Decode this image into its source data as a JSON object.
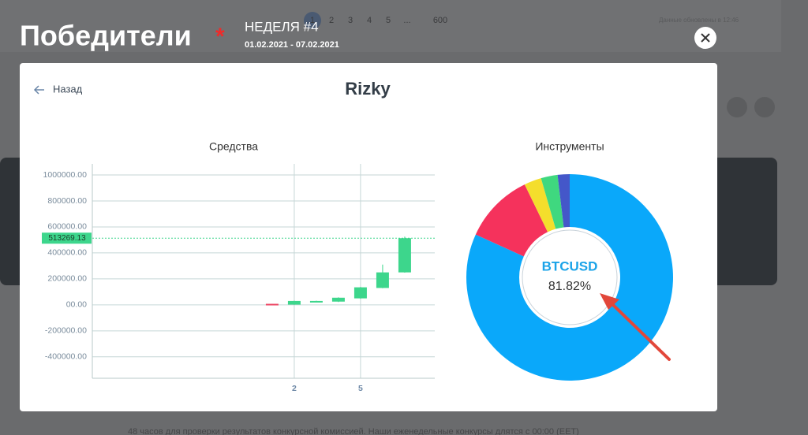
{
  "background": {
    "pagination": [
      "1",
      "2",
      "3",
      "4",
      "5",
      "...",
      "600"
    ],
    "updated": "Данные обновлены в 12:46",
    "footer_note": "48 часов для проверки результатов конкурсной комиссией. Наши еженедельные конкурсы длятся с 00:00 (EET)"
  },
  "header": {
    "title": "Победители",
    "asterisk": "*",
    "week": "НЕДЕЛЯ #4",
    "dates": "01.02.2021 - 07.02.2021"
  },
  "modal": {
    "back": "Назад",
    "title": "Rizky"
  },
  "chart_data": [
    {
      "type": "candlestick",
      "title": "Средства",
      "x": [
        1,
        2,
        3,
        4,
        5,
        6,
        7
      ],
      "open": [
        8000,
        2000,
        25000,
        25000,
        50000,
        130000,
        250000
      ],
      "high": [
        8000,
        32000,
        32000,
        58000,
        138000,
        310000,
        525000
      ],
      "low": [
        2000,
        0,
        22000,
        22000,
        48000,
        128000,
        248000
      ],
      "close": [
        2000,
        30000,
        30000,
        55000,
        135000,
        250000,
        513269.13
      ],
      "up_color": "#3dd68c",
      "down_color": "#ec4664",
      "xlim": [
        -7.14,
        8.36
      ],
      "ylim": [
        -565000,
        1000000
      ],
      "xticks": [
        2,
        5
      ],
      "yticks": [
        {
          "value": -400000,
          "label": "-400000.00"
        },
        {
          "value": -200000,
          "label": "-200000.00"
        },
        {
          "value": 0,
          "label": "00.00"
        },
        {
          "value": 200000,
          "label": "200000.00"
        },
        {
          "value": 400000,
          "label": "400000.00"
        },
        {
          "value": 600000,
          "label": "600000.00"
        },
        {
          "value": 800000,
          "label": "800000.00"
        },
        {
          "value": 1000000,
          "label": "1000000.00"
        }
      ],
      "grid": true
    },
    {
      "type": "pie",
      "title": "Инструменты",
      "categories": [
        "BTCUSD",
        null,
        null,
        null,
        null
      ],
      "values": [
        81.82,
        11,
        2.7,
        2.6,
        1.88
      ],
      "value_labels": [
        "81.82%",
        null,
        null,
        null,
        null
      ],
      "colors": [
        "#0aa8fa",
        "#f5325c",
        "#f4de2c",
        "#3fd87f",
        "#4457c9"
      ]
    }
  ]
}
